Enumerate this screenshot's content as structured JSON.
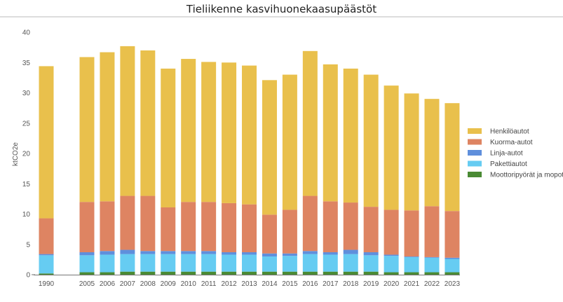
{
  "chart_data": {
    "type": "bar",
    "stacked": true,
    "title": "Tieliikenne kasvihuonekaasupäästöt",
    "xlabel": "",
    "ylabel": "ktCO2e",
    "ylim": [
      0,
      40
    ],
    "yticks": [
      0,
      5,
      10,
      15,
      20,
      25,
      30,
      35,
      40
    ],
    "grid": false,
    "legend_position": "right",
    "categories": [
      "1990",
      "2005",
      "2006",
      "2007",
      "2008",
      "2009",
      "2010",
      "2011",
      "2012",
      "2013",
      "2014",
      "2015",
      "2016",
      "2017",
      "2018",
      "2019",
      "2020",
      "2021",
      "2022",
      "2023"
    ],
    "series": [
      {
        "name": "Moottoripyörät ja mopot",
        "color": "#4a8a34",
        "values": [
          0.2,
          0.4,
          0.4,
          0.5,
          0.5,
          0.5,
          0.5,
          0.5,
          0.5,
          0.5,
          0.5,
          0.5,
          0.5,
          0.5,
          0.5,
          0.5,
          0.4,
          0.4,
          0.4,
          0.4
        ]
      },
      {
        "name": "Pakettiautot",
        "color": "#66ccf2",
        "values": [
          3.0,
          2.8,
          2.9,
          2.9,
          2.9,
          2.9,
          2.9,
          2.9,
          2.8,
          2.8,
          2.5,
          2.6,
          2.9,
          2.8,
          2.9,
          2.7,
          2.7,
          2.5,
          2.4,
          2.2
        ]
      },
      {
        "name": "Linja-autot",
        "color": "#5f8fdc",
        "values": [
          0.2,
          0.5,
          0.6,
          0.7,
          0.5,
          0.5,
          0.5,
          0.5,
          0.4,
          0.4,
          0.5,
          0.4,
          0.5,
          0.4,
          0.7,
          0.5,
          0.2,
          0.1,
          0.1,
          0.2
        ]
      },
      {
        "name": "Kuorma-autot",
        "color": "#de8462",
        "values": [
          5.9,
          8.3,
          8.2,
          8.9,
          9.1,
          7.2,
          8.1,
          8.1,
          8.1,
          7.9,
          6.4,
          7.2,
          9.1,
          8.4,
          7.8,
          7.5,
          7.4,
          7.6,
          8.4,
          7.7
        ]
      },
      {
        "name": "Henkilöautot",
        "color": "#e9c04c",
        "values": [
          25.1,
          23.9,
          24.6,
          24.7,
          24.0,
          22.9,
          23.6,
          23.1,
          23.2,
          22.9,
          22.2,
          22.3,
          23.9,
          22.6,
          22.1,
          21.8,
          20.5,
          19.3,
          17.7,
          17.8
        ]
      }
    ],
    "legend_order": [
      4,
      3,
      2,
      1,
      0
    ]
  }
}
